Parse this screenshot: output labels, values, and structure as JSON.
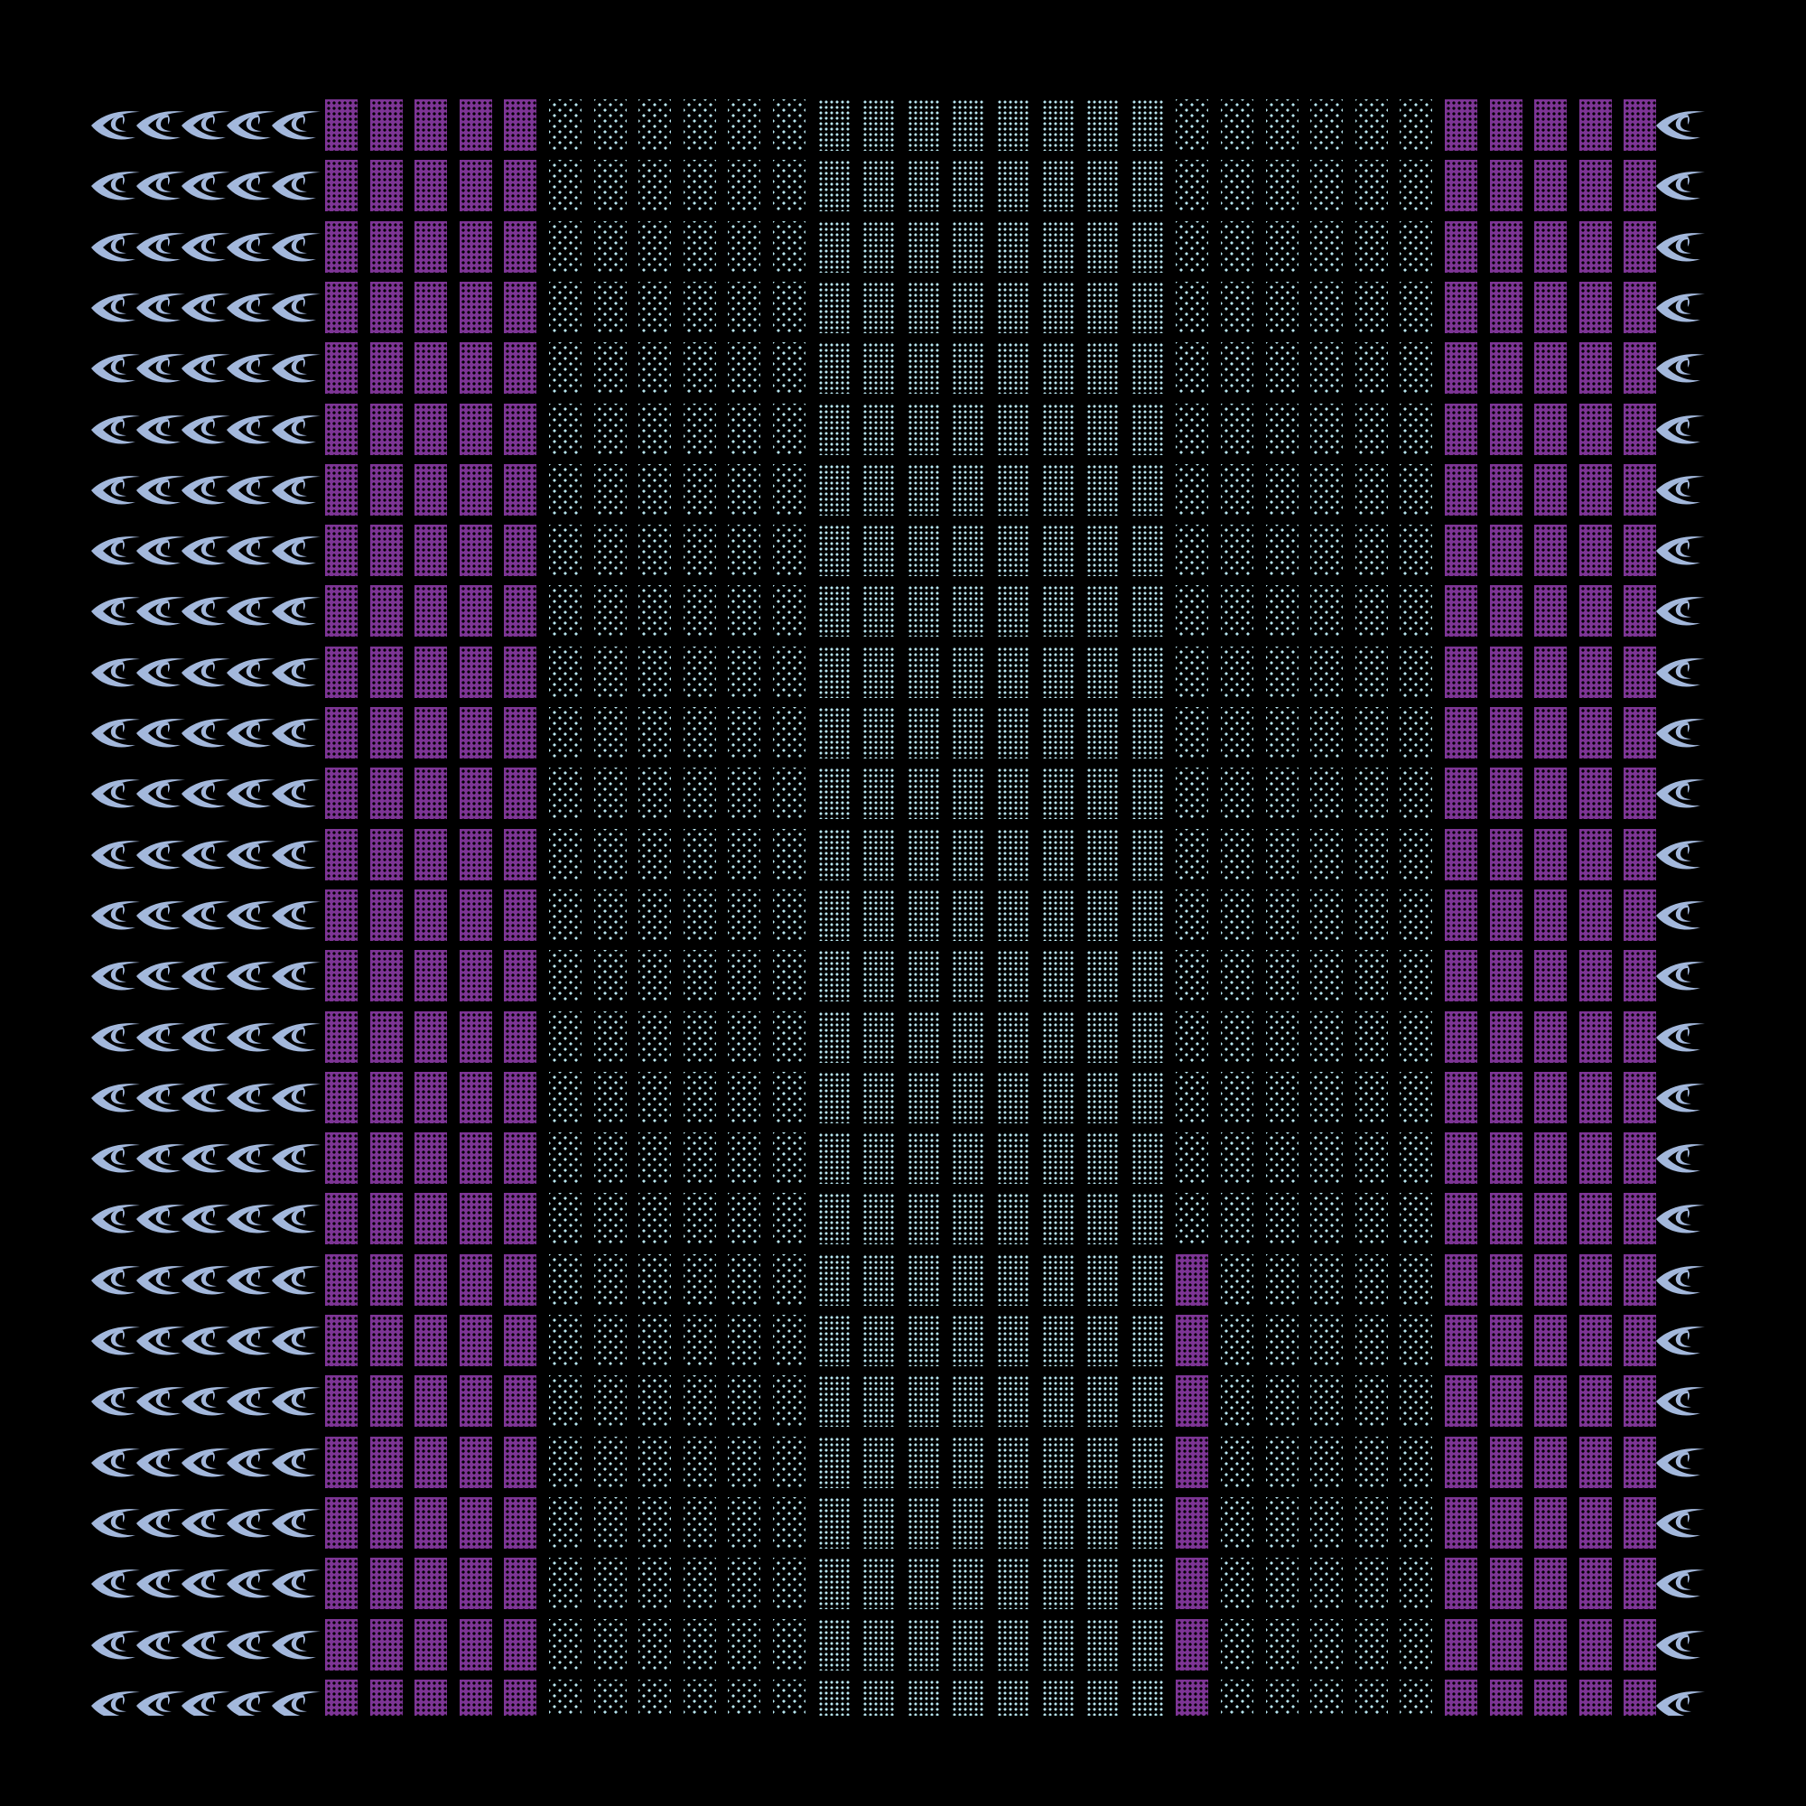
{
  "colors": {
    "background": "#000000",
    "purple_block": "#7d3595",
    "dot_cyan": "#b8e6f0",
    "eye": "#a3b8dc"
  },
  "icon": "eye-icon",
  "grid": {
    "rows": 27,
    "left_eyes_per_row": 5,
    "columns": [
      "purple",
      "purple",
      "purple",
      "purple",
      "purple",
      "sparse",
      "sparse",
      "sparse",
      "sparse",
      "sparse",
      "sparse",
      "dense",
      "dense",
      "dense",
      "dense",
      "dense",
      "dense",
      "dense",
      "dense",
      "sparse",
      "sparse",
      "sparse",
      "sparse",
      "sparse",
      "sparse",
      "purple",
      "purple",
      "purple",
      "purple",
      "purple"
    ],
    "column_21_purple_from_row": 19
  }
}
